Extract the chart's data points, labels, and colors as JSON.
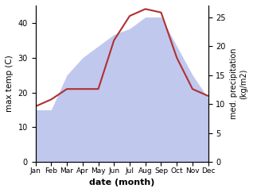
{
  "months": [
    "Jan",
    "Feb",
    "Mar",
    "Apr",
    "May",
    "Jun",
    "Jul",
    "Aug",
    "Sep",
    "Oct",
    "Nov",
    "Dec"
  ],
  "month_positions": [
    0,
    1,
    2,
    3,
    4,
    5,
    6,
    7,
    8,
    9,
    10,
    11
  ],
  "temp": [
    16,
    18,
    21,
    21,
    21,
    35,
    42,
    44,
    43,
    30,
    21,
    19
  ],
  "precip": [
    9,
    9,
    15,
    18,
    20,
    22,
    23,
    25,
    25,
    20,
    15,
    11
  ],
  "temp_color": "#b03030",
  "precip_color": "#c0c8ee",
  "temp_ylim": [
    0,
    45
  ],
  "precip_ylim": [
    0,
    27
  ],
  "temp_yticks": [
    0,
    10,
    20,
    30,
    40
  ],
  "precip_yticks": [
    0,
    5,
    10,
    15,
    20,
    25
  ],
  "ylabel_left": "max temp (C)",
  "ylabel_right": "med. precipitation\n(kg/m2)",
  "xlabel": "date (month)",
  "figsize": [
    3.18,
    2.42
  ],
  "dpi": 100
}
